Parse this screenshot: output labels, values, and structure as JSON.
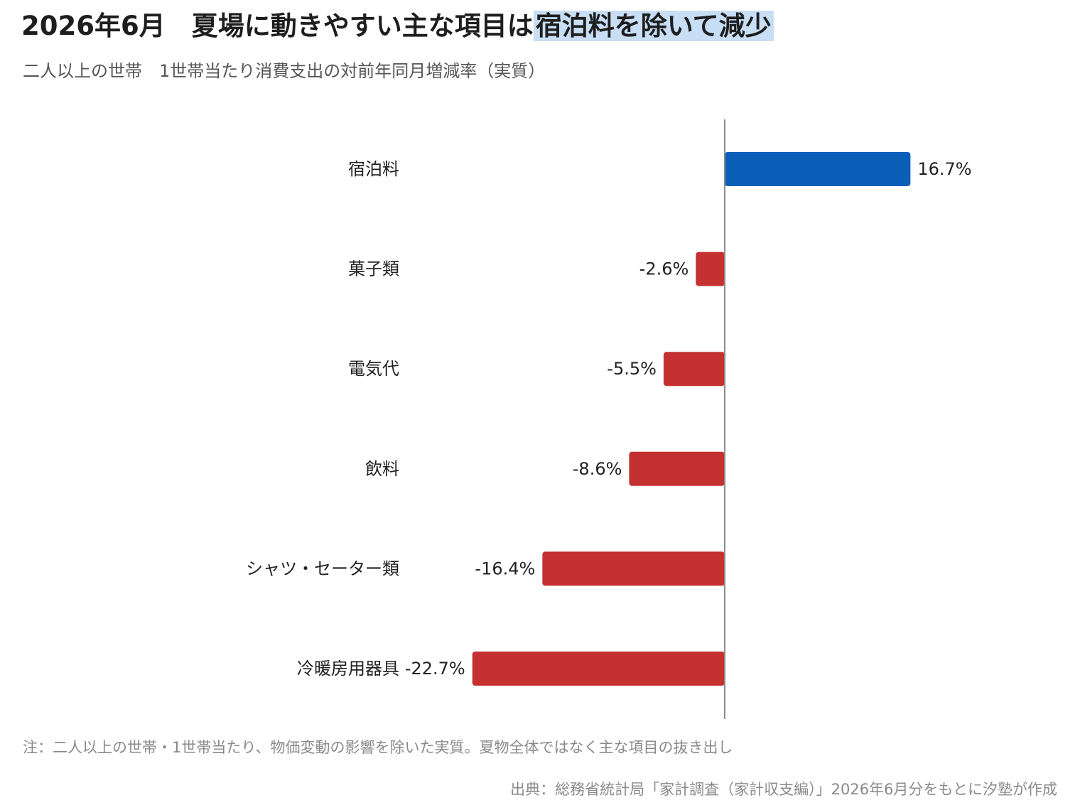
{
  "title_main": "2026年6月　夏場に動きやすい主な項目は",
  "title_highlight": "宿泊料を除いて減少",
  "subtitle": "二人以上の世帯　1世帯当たり消費支出の対前年同月増減率（実質）",
  "note": "注：二人以上の世帯・1世帯当たり、物価変動の影響を除いた実質。夏物全体ではなく主な項目の抜き出し",
  "source": "出典：総務省統計局「家計調査（家計収支編）」2026年6月分をもとに汐塾が作成",
  "colors": {
    "positive": "#0b5fb8",
    "negative": "#c53030",
    "axis": "#8c8c8c",
    "title_highlight": "#c8def5"
  },
  "chart_data": {
    "type": "bar",
    "orientation": "horizontal",
    "title": "2026年6月　夏場に動きやすい主な項目は宿泊料を除いて減少",
    "subtitle": "二人以上の世帯　1世帯当たり消費支出の対前年同月増減率（実質）",
    "unit": "%",
    "categories": [
      "宿泊料",
      "菓子類",
      "電気代",
      "飲料",
      "シャツ・セーター類",
      "冷暖房用器具"
    ],
    "values": [
      16.7,
      -2.6,
      -5.5,
      -8.6,
      -16.4,
      -22.7
    ],
    "value_labels": [
      "16.7%",
      "-2.6%",
      "-5.5%",
      "-8.6%",
      "-16.4%",
      "-22.7%"
    ],
    "grid": false,
    "legend": "none"
  }
}
